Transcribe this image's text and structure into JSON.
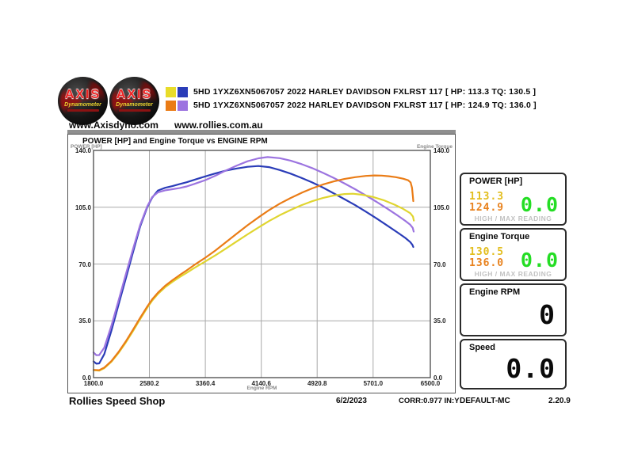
{
  "header": {
    "logo": {
      "brand": "AXIS",
      "sub": "Dynamometer"
    },
    "runs": [
      {
        "swatch1": "#e8dc2a",
        "swatch2": "#2a3cb8",
        "label": "5HD 1YXZ6XN5067057 2022 HARLEY DAVIDSON FXLRST 117 [ HP: 113.3 TQ: 130.5 ]"
      },
      {
        "swatch1": "#ea7c16",
        "swatch2": "#9c74e0",
        "label": "5HD 1YXZ6XN5067057 2022 HARLEY DAVIDSON FXLRST 117 [ HP: 124.9 TQ: 136.0 ]"
      }
    ],
    "websites": {
      "axis": "www.Axisdyno.com",
      "rollies": "www.rollies.com.au"
    }
  },
  "chart_data": {
    "type": "line",
    "title": "POWER [HP] and Engine Torque vs ENGINE RPM",
    "xlabel": "Engine RPM",
    "ylabel_left": "POWER [HP]",
    "ylabel_right": "Engine Torque",
    "xlim": [
      1800,
      6500
    ],
    "ylim": [
      0,
      140
    ],
    "grid": true,
    "x_ticks": [
      "1800.0",
      "2580.2",
      "3360.4",
      "4140.6",
      "4920.8",
      "5701.0",
      "6500.0"
    ],
    "y_ticks": [
      "140.0",
      "105.0",
      "70.0",
      "35.0",
      "0.0"
    ],
    "series": [
      {
        "name": "run1-engine-torque",
        "color": "#2a3cb8",
        "points": [
          [
            1800,
            10
          ],
          [
            1840,
            8.6
          ],
          [
            1880,
            8.8
          ],
          [
            1950,
            14.5
          ],
          [
            2050,
            29
          ],
          [
            2150,
            45
          ],
          [
            2250,
            61
          ],
          [
            2350,
            77
          ],
          [
            2450,
            93
          ],
          [
            2550,
            105
          ],
          [
            2620,
            111
          ],
          [
            2700,
            115.3
          ],
          [
            2800,
            117
          ],
          [
            2900,
            118
          ],
          [
            3000,
            119.2
          ],
          [
            3100,
            120.4
          ],
          [
            3200,
            121.8
          ],
          [
            3360,
            124
          ],
          [
            3500,
            125.8
          ],
          [
            3650,
            127.6
          ],
          [
            3800,
            128.9
          ],
          [
            3950,
            129.9
          ],
          [
            4100,
            130.4
          ],
          [
            4250,
            129.7
          ],
          [
            4400,
            127.9
          ],
          [
            4550,
            125.7
          ],
          [
            4700,
            123.1
          ],
          [
            4850,
            120.3
          ],
          [
            5000,
            117.1
          ],
          [
            5150,
            113.6
          ],
          [
            5300,
            110
          ],
          [
            5450,
            106.3
          ],
          [
            5600,
            102.3
          ],
          [
            5750,
            98.1
          ],
          [
            5900,
            93.7
          ],
          [
            6050,
            89.2
          ],
          [
            6150,
            86.1
          ],
          [
            6220,
            83.5
          ],
          [
            6250,
            81.8
          ],
          [
            6262,
            80.5
          ]
        ]
      },
      {
        "name": "run2-engine-torque",
        "color": "#9c74e0",
        "points": [
          [
            1800,
            15.5
          ],
          [
            1840,
            13.8
          ],
          [
            1880,
            13.9
          ],
          [
            1950,
            18.5
          ],
          [
            2050,
            32
          ],
          [
            2150,
            47.5
          ],
          [
            2250,
            63.5
          ],
          [
            2350,
            79
          ],
          [
            2450,
            94
          ],
          [
            2550,
            105.5
          ],
          [
            2620,
            111.3
          ],
          [
            2700,
            114.2
          ],
          [
            2800,
            115.4
          ],
          [
            2900,
            116.1
          ],
          [
            3000,
            116.8
          ],
          [
            3100,
            117.8
          ],
          [
            3200,
            119.2
          ],
          [
            3360,
            121.7
          ],
          [
            3500,
            124.4
          ],
          [
            3650,
            127.7
          ],
          [
            3800,
            130.7
          ],
          [
            3950,
            133.3
          ],
          [
            4100,
            135.1
          ],
          [
            4230,
            135.9
          ],
          [
            4400,
            135.2
          ],
          [
            4550,
            133.7
          ],
          [
            4700,
            131.6
          ],
          [
            4850,
            129.1
          ],
          [
            5000,
            126.2
          ],
          [
            5150,
            123.1
          ],
          [
            5300,
            119.7
          ],
          [
            5450,
            116.1
          ],
          [
            5600,
            112.3
          ],
          [
            5750,
            108.3
          ],
          [
            5900,
            104.1
          ],
          [
            6050,
            99.7
          ],
          [
            6150,
            96.6
          ],
          [
            6220,
            94.2
          ],
          [
            6255,
            92.3
          ],
          [
            6268,
            90
          ]
        ]
      },
      {
        "name": "run1-power-hp",
        "color": "#e0d530",
        "points": [
          [
            1800,
            4.6
          ],
          [
            1880,
            4.3
          ],
          [
            1950,
            5.8
          ],
          [
            2050,
            9.8
          ],
          [
            2150,
            15.2
          ],
          [
            2250,
            21.6
          ],
          [
            2350,
            28.6
          ],
          [
            2450,
            36
          ],
          [
            2550,
            43
          ],
          [
            2620,
            47.5
          ],
          [
            2700,
            51.6
          ],
          [
            2800,
            55.7
          ],
          [
            2900,
            59
          ],
          [
            3000,
            61.9
          ],
          [
            3100,
            64.6
          ],
          [
            3200,
            67.4
          ],
          [
            3360,
            71.6
          ],
          [
            3500,
            75.3
          ],
          [
            3650,
            79.6
          ],
          [
            3800,
            84
          ],
          [
            3950,
            88.3
          ],
          [
            4100,
            92.5
          ],
          [
            4250,
            96.5
          ],
          [
            4400,
            100.1
          ],
          [
            4550,
            103.3
          ],
          [
            4700,
            106.2
          ],
          [
            4850,
            108.7
          ],
          [
            5000,
            110.7
          ],
          [
            5150,
            112.2
          ],
          [
            5300,
            113.1
          ],
          [
            5420,
            113.3
          ],
          [
            5550,
            112.7
          ],
          [
            5700,
            111.3
          ],
          [
            5850,
            109.3
          ],
          [
            6000,
            106.6
          ],
          [
            6120,
            104
          ],
          [
            6220,
            101.3
          ],
          [
            6258,
            99.2
          ],
          [
            6270,
            96.8
          ]
        ]
      },
      {
        "name": "run2-power-hp",
        "color": "#ea7c16",
        "points": [
          [
            1800,
            4.8
          ],
          [
            1880,
            4.6
          ],
          [
            1950,
            6.2
          ],
          [
            2050,
            10.2
          ],
          [
            2150,
            15.8
          ],
          [
            2250,
            22.3
          ],
          [
            2350,
            29.4
          ],
          [
            2450,
            36.8
          ],
          [
            2550,
            43.8
          ],
          [
            2620,
            48.3
          ],
          [
            2700,
            52.4
          ],
          [
            2800,
            56.6
          ],
          [
            2900,
            60
          ],
          [
            3000,
            63.1
          ],
          [
            3100,
            66.1
          ],
          [
            3200,
            69.2
          ],
          [
            3360,
            73.9
          ],
          [
            3500,
            78.3
          ],
          [
            3650,
            83.5
          ],
          [
            3800,
            88.8
          ],
          [
            3950,
            93.9
          ],
          [
            4100,
            98.7
          ],
          [
            4250,
            103.2
          ],
          [
            4400,
            107.2
          ],
          [
            4550,
            110.7
          ],
          [
            4700,
            113.8
          ],
          [
            4850,
            116.6
          ],
          [
            5000,
            119
          ],
          [
            5150,
            120.9
          ],
          [
            5300,
            122.4
          ],
          [
            5450,
            123.5
          ],
          [
            5600,
            124.3
          ],
          [
            5720,
            124.6
          ],
          [
            5820,
            124.5
          ],
          [
            5920,
            124.1
          ],
          [
            6020,
            123.5
          ],
          [
            6120,
            122.6
          ],
          [
            6190,
            121.6
          ],
          [
            6225,
            120.3
          ],
          [
            6245,
            117
          ],
          [
            6255,
            112.5
          ],
          [
            6262,
            108.8
          ]
        ]
      }
    ]
  },
  "panels": {
    "power": {
      "title": "POWER [HP]",
      "max1": "113.3",
      "max1_color": "#e2bd1c",
      "max2": "124.9",
      "max2_color": "#e8821e",
      "live": "0.0",
      "live_color": "#24dd24",
      "footer": "HIGH / MAX READING"
    },
    "torque": {
      "title": "Engine Torque",
      "max1": "130.5",
      "max1_color": "#e2bd1c",
      "max2": "136.0",
      "max2_color": "#e8821e",
      "live": "0.0",
      "live_color": "#24dd24",
      "footer": "HIGH / MAX READING"
    },
    "rpm": {
      "title": "Engine RPM",
      "value": "0"
    },
    "speed": {
      "title": "Speed",
      "value": "0.0"
    }
  },
  "statusbar": {
    "shop": "Rollies Speed Shop",
    "date": "6/2/2023",
    "correction": "CORR:0.977 IN:Y",
    "profile": "DEFAULT-MC",
    "version": "2.20.9"
  }
}
